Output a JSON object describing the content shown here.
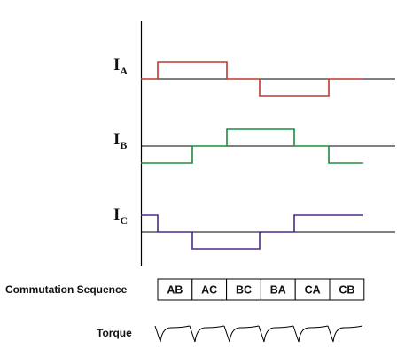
{
  "signals": [
    {
      "main": "I",
      "sub": "A",
      "color": "#c0392b",
      "levels": [
        0,
        1,
        1,
        0,
        -1,
        -1,
        0,
        0
      ]
    },
    {
      "main": "I",
      "sub": "B",
      "color": "#1e8b3c",
      "levels": [
        -1,
        -1,
        0,
        1,
        1,
        0,
        -1,
        -1
      ]
    },
    {
      "main": "I",
      "sub": "C",
      "color": "#4b2a8f",
      "levels": [
        1,
        0,
        -1,
        -1,
        0,
        1,
        1,
        1
      ]
    }
  ],
  "commutation": {
    "label": "Commutation Sequence",
    "steps": [
      "AB",
      "AC",
      "BC",
      "BA",
      "CA",
      "CB"
    ]
  },
  "torque": {
    "label": "Torque"
  },
  "colors": {
    "axis": "#000000",
    "baseline": "#000000"
  }
}
